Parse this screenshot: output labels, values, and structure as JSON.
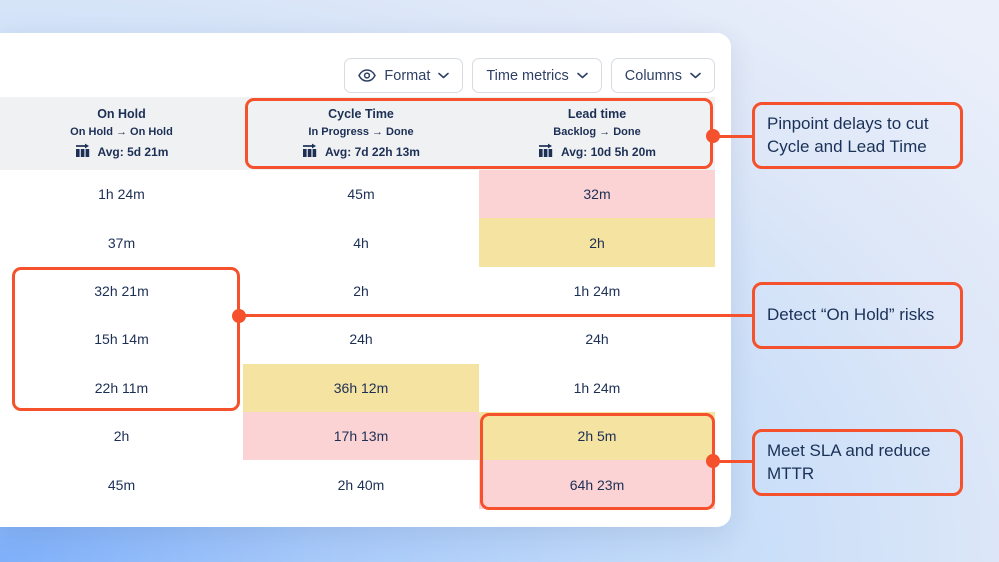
{
  "toolbar": {
    "format_label": "Format",
    "time_metrics_label": "Time metrics",
    "columns_label": "Columns"
  },
  "table": {
    "headers": [
      {
        "title": "On Hold",
        "transition": "On Hold → On Hold",
        "avg": "Avg: 5d 21m"
      },
      {
        "title": "Cycle Time",
        "transition": "In Progress → Done",
        "avg": "Avg: 7d 22h 13m"
      },
      {
        "title": "Lead time",
        "transition": "Backlog → Done",
        "avg": "Avg: 10d 5h 20m"
      }
    ],
    "rows": [
      [
        "1h 24m",
        "45m",
        "32m"
      ],
      [
        "37m",
        "4h",
        "2h"
      ],
      [
        "32h 21m",
        "2h",
        "1h 24m"
      ],
      [
        "15h 14m",
        "24h",
        "24h"
      ],
      [
        "22h 11m",
        "36h 12m",
        "1h 24m"
      ],
      [
        "2h",
        "17h 13m",
        "2h 5m"
      ],
      [
        "45m",
        "2h 40m",
        "64h 23m"
      ]
    ],
    "highlights": {
      "0,2": "red",
      "1,2": "yellow",
      "4,1": "yellow",
      "5,1": "red",
      "5,2": "yellow",
      "6,2": "red"
    }
  },
  "annotations": [
    {
      "text": "Pinpoint delays to cut Cycle and Lead Time"
    },
    {
      "text": "Detect “On Hold” risks"
    },
    {
      "text": "Meet SLA and reduce MTTR"
    }
  ],
  "icons": {
    "format_button": "eye-icon",
    "avg_metric": "bar-chart-trend-icon",
    "dropdown": "chevron-down-icon"
  },
  "colors": {
    "accent_orange": "#F4512C",
    "highlight_red": "#FBD3D4",
    "highlight_yellow": "#F5E3A1",
    "text_navy": "#1C2F55",
    "header_gray": "#F0F1F3"
  }
}
